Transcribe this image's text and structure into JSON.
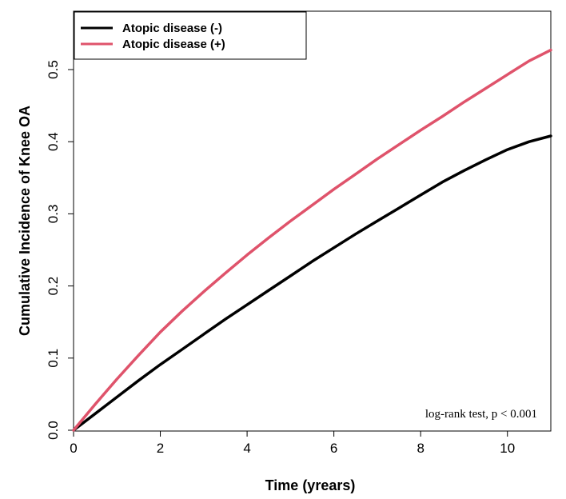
{
  "chart_data": {
    "type": "line",
    "xlabel": "Time (yrears)",
    "ylabel": "Cumulative Incidence of Knee OA",
    "xlim": [
      0,
      11
    ],
    "ylim": [
      0,
      0.55
    ],
    "x_ticks": [
      "0",
      "2",
      "4",
      "6",
      "8",
      "10"
    ],
    "y_ticks": [
      "0.0",
      "0.1",
      "0.2",
      "0.3",
      "0.4",
      "0.5"
    ],
    "grid": false,
    "legend_position": "top-left",
    "annotation": "log-rank test, p < 0.001",
    "series": [
      {
        "name": "Atopic disease (-)",
        "color": "#000000",
        "x": [
          0,
          0.5,
          1,
          1.5,
          2,
          2.5,
          3,
          3.5,
          4,
          4.5,
          5,
          5.5,
          6,
          6.5,
          7,
          7.5,
          8,
          8.5,
          9,
          9.5,
          10,
          10.5,
          11
        ],
        "y": [
          0,
          0.023,
          0.046,
          0.069,
          0.091,
          0.112,
          0.133,
          0.154,
          0.174,
          0.194,
          0.214,
          0.234,
          0.253,
          0.272,
          0.29,
          0.308,
          0.326,
          0.344,
          0.36,
          0.375,
          0.389,
          0.4,
          0.408
        ]
      },
      {
        "name": "Atopic disease (+)",
        "color": "#df536b",
        "x": [
          0,
          0.5,
          1,
          1.5,
          2,
          2.5,
          3,
          3.5,
          4,
          4.5,
          5,
          5.5,
          6,
          6.5,
          7,
          7.5,
          8,
          8.5,
          9,
          9.5,
          10,
          10.5,
          11
        ],
        "y": [
          0,
          0.036,
          0.071,
          0.104,
          0.136,
          0.165,
          0.192,
          0.218,
          0.243,
          0.267,
          0.29,
          0.312,
          0.334,
          0.355,
          0.376,
          0.396,
          0.416,
          0.435,
          0.455,
          0.474,
          0.493,
          0.512,
          0.527
        ]
      }
    ]
  }
}
